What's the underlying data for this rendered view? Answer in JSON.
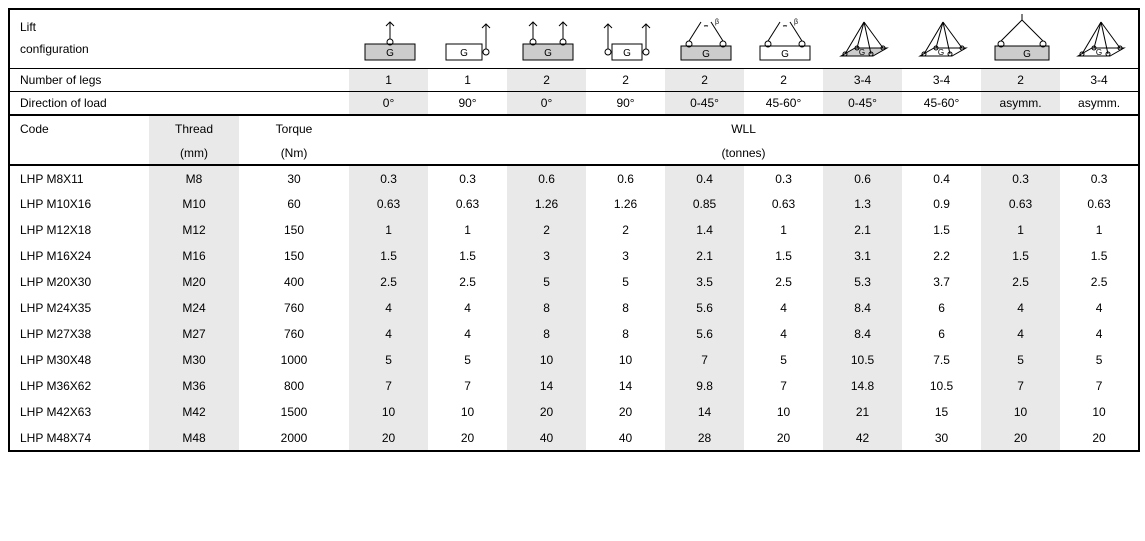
{
  "labels": {
    "lift_configuration": "Lift\nconfiguration",
    "number_of_legs": "Number of legs",
    "direction_of_load": "Direction of load",
    "code": "Code",
    "thread": "Thread",
    "thread_unit": "(mm)",
    "torque": "Torque",
    "torque_unit": "(Nm)",
    "wll": "WLL",
    "wll_unit": "(tonnes)"
  },
  "col_widths": {
    "code": 140,
    "thread": 90,
    "torque": 110,
    "data": 79
  },
  "configs": [
    {
      "legs": "1",
      "dir": "0°",
      "shade": true,
      "icon": "g_top1_shade"
    },
    {
      "legs": "1",
      "dir": "90°",
      "shade": false,
      "icon": "g_side1"
    },
    {
      "legs": "2",
      "dir": "0°",
      "shade": true,
      "icon": "g_top2_shade"
    },
    {
      "legs": "2",
      "dir": "90°",
      "shade": false,
      "icon": "g_side2"
    },
    {
      "legs": "2",
      "dir": "0-45°",
      "shade": true,
      "icon": "g_ang2_shade"
    },
    {
      "legs": "2",
      "dir": "45-60°",
      "shade": false,
      "icon": "g_ang2"
    },
    {
      "legs": "3-4",
      "dir": "0-45°",
      "shade": true,
      "icon": "g_iso4_shade"
    },
    {
      "legs": "3-4",
      "dir": "45-60°",
      "shade": false,
      "icon": "g_iso4"
    },
    {
      "legs": "2",
      "dir": "asymm.",
      "shade": true,
      "icon": "g_asym2_shade"
    },
    {
      "legs": "3-4",
      "dir": "asymm.",
      "shade": false,
      "icon": "g_iso4"
    }
  ],
  "rows": [
    {
      "code": "LHP M8X11",
      "thread": "M8",
      "torque": "30",
      "wll": [
        "0.3",
        "0.3",
        "0.6",
        "0.6",
        "0.4",
        "0.3",
        "0.6",
        "0.4",
        "0.3",
        "0.3"
      ]
    },
    {
      "code": "LHP M10X16",
      "thread": "M10",
      "torque": "60",
      "wll": [
        "0.63",
        "0.63",
        "1.26",
        "1.26",
        "0.85",
        "0.63",
        "1.3",
        "0.9",
        "0.63",
        "0.63"
      ]
    },
    {
      "code": "LHP M12X18",
      "thread": "M12",
      "torque": "150",
      "wll": [
        "1",
        "1",
        "2",
        "2",
        "1.4",
        "1",
        "2.1",
        "1.5",
        "1",
        "1"
      ]
    },
    {
      "code": "LHP M16X24",
      "thread": "M16",
      "torque": "150",
      "wll": [
        "1.5",
        "1.5",
        "3",
        "3",
        "2.1",
        "1.5",
        "3.1",
        "2.2",
        "1.5",
        "1.5"
      ]
    },
    {
      "code": "LHP M20X30",
      "thread": "M20",
      "torque": "400",
      "wll": [
        "2.5",
        "2.5",
        "5",
        "5",
        "3.5",
        "2.5",
        "5.3",
        "3.7",
        "2.5",
        "2.5"
      ]
    },
    {
      "code": "LHP M24X35",
      "thread": "M24",
      "torque": "760",
      "wll": [
        "4",
        "4",
        "8",
        "8",
        "5.6",
        "4",
        "8.4",
        "6",
        "4",
        "4"
      ]
    },
    {
      "code": "LHP M27X38",
      "thread": "M27",
      "torque": "760",
      "wll": [
        "4",
        "4",
        "8",
        "8",
        "5.6",
        "4",
        "8.4",
        "6",
        "4",
        "4"
      ]
    },
    {
      "code": "LHP M30X48",
      "thread": "M30",
      "torque": "1000",
      "wll": [
        "5",
        "5",
        "10",
        "10",
        "7",
        "5",
        "10.5",
        "7.5",
        "5",
        "5"
      ]
    },
    {
      "code": "LHP M36X62",
      "thread": "M36",
      "torque": "800",
      "wll": [
        "7",
        "7",
        "14",
        "14",
        "9.8",
        "7",
        "14.8",
        "10.5",
        "7",
        "7"
      ]
    },
    {
      "code": "LHP M42X63",
      "thread": "M42",
      "torque": "1500",
      "wll": [
        "10",
        "10",
        "20",
        "20",
        "14",
        "10",
        "21",
        "15",
        "10",
        "10"
      ]
    },
    {
      "code": "LHP M48X74",
      "thread": "M48",
      "torque": "2000",
      "wll": [
        "20",
        "20",
        "40",
        "40",
        "28",
        "20",
        "42",
        "30",
        "20",
        "20"
      ]
    }
  ],
  "style": {
    "shade_color": "#e9e9e9",
    "border_color": "#000000",
    "font_size": 12
  }
}
